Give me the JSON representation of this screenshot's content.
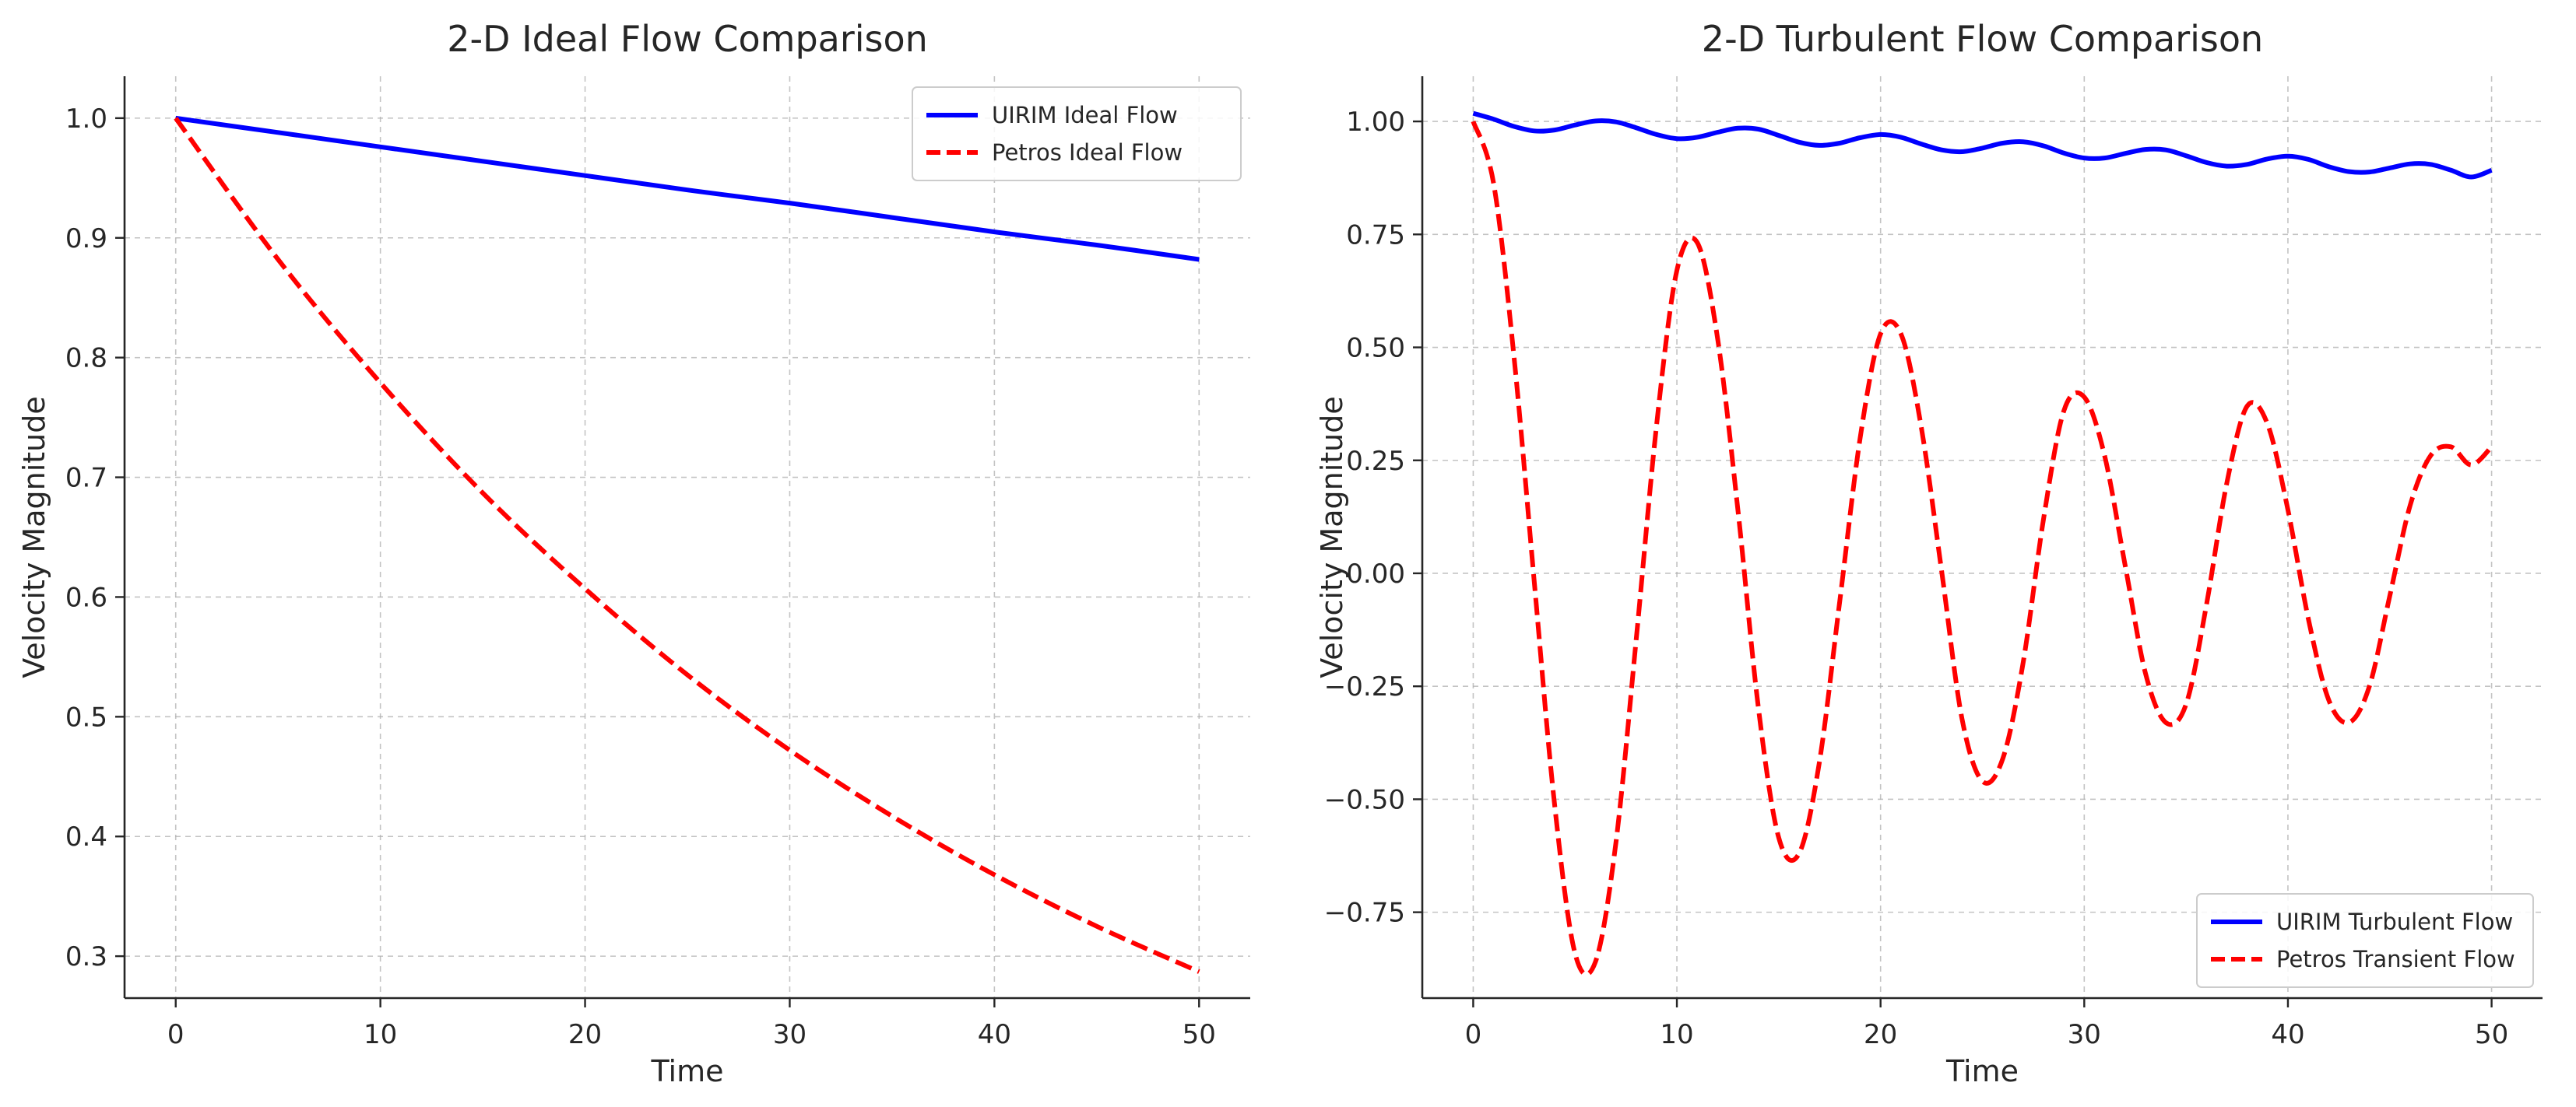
{
  "chart_data": [
    {
      "type": "line",
      "title": "2-D Ideal Flow Comparison",
      "xlabel": "Time",
      "ylabel": "Velocity Magnitude",
      "xlim": [
        -2.5,
        52.5
      ],
      "ylim": [
        0.265,
        1.035
      ],
      "xticks": [
        0,
        10,
        20,
        30,
        40,
        50
      ],
      "yticks": [
        0.3,
        0.4,
        0.5,
        0.6,
        0.7,
        0.8,
        0.9,
        1.0
      ],
      "xtick_labels": [
        "0",
        "10",
        "20",
        "30",
        "40",
        "50"
      ],
      "ytick_labels": [
        "0.3",
        "0.4",
        "0.5",
        "0.6",
        "0.7",
        "0.8",
        "0.9",
        "1.0"
      ],
      "grid": true,
      "legend_position": "top-right",
      "series": [
        {
          "name": "UIRIM Ideal Flow",
          "color": "#0000ff",
          "style": "solid",
          "x": [
            0,
            5,
            10,
            15,
            20,
            25,
            30,
            35,
            40,
            45,
            50
          ],
          "y": [
            1.0,
            0.988,
            0.976,
            0.964,
            0.952,
            0.94,
            0.929,
            0.917,
            0.905,
            0.894,
            0.882
          ]
        },
        {
          "name": "Petros Ideal Flow",
          "color": "#ff0000",
          "style": "dashed",
          "x": [
            0,
            5,
            10,
            15,
            20,
            25,
            30,
            35,
            40,
            45,
            50
          ],
          "y": [
            1.0,
            0.882,
            0.779,
            0.687,
            0.607,
            0.535,
            0.472,
            0.417,
            0.368,
            0.325,
            0.287
          ]
        }
      ]
    },
    {
      "type": "line",
      "title": "2-D Turbulent Flow Comparison",
      "xlabel": "Time",
      "ylabel": "Velocity Magnitude",
      "xlim": [
        -2.5,
        52.5
      ],
      "ylim": [
        -0.94,
        1.1
      ],
      "xticks": [
        0,
        10,
        20,
        30,
        40,
        50
      ],
      "yticks": [
        -0.75,
        -0.5,
        -0.25,
        0.0,
        0.25,
        0.5,
        0.75,
        1.0
      ],
      "xtick_labels": [
        "0",
        "10",
        "20",
        "30",
        "40",
        "50"
      ],
      "ytick_labels": [
        "−0.75",
        "−0.50",
        "−0.25",
        "0.00",
        "0.25",
        "0.50",
        "0.75",
        "1.00"
      ],
      "grid": true,
      "legend_position": "lower-right",
      "series": [
        {
          "name": "UIRIM Turbulent Flow",
          "color": "#0000ff",
          "style": "solid",
          "x": [
            0,
            1,
            2,
            3,
            4,
            5,
            6,
            7,
            8,
            9,
            10,
            11,
            12,
            13,
            14,
            15,
            16,
            17,
            18,
            19,
            20,
            21,
            22,
            23,
            24,
            25,
            26,
            27,
            28,
            29,
            30,
            31,
            32,
            33,
            34,
            35,
            36,
            37,
            38,
            39,
            40,
            41,
            42,
            43,
            44,
            45,
            46,
            47,
            48,
            49,
            50
          ],
          "y": [
            1.018,
            1.005,
            0.989,
            0.979,
            0.981,
            0.992,
            1.001,
            0.999,
            0.986,
            0.971,
            0.962,
            0.965,
            0.976,
            0.985,
            0.983,
            0.969,
            0.954,
            0.947,
            0.952,
            0.964,
            0.971,
            0.965,
            0.95,
            0.937,
            0.933,
            0.941,
            0.952,
            0.955,
            0.946,
            0.93,
            0.919,
            0.919,
            0.929,
            0.938,
            0.937,
            0.924,
            0.909,
            0.901,
            0.905,
            0.917,
            0.923,
            0.916,
            0.9,
            0.889,
            0.888,
            0.897,
            0.906,
            0.905,
            0.892,
            0.877,
            0.892
          ]
        },
        {
          "name": "Petros Transient Flow",
          "color": "#ff0000",
          "style": "dashed",
          "x": [
            0,
            1,
            2,
            3,
            4,
            5,
            6,
            7,
            8,
            9,
            10,
            11,
            12,
            13,
            14,
            15,
            16,
            17,
            18,
            19,
            20,
            21,
            22,
            23,
            24,
            25,
            26,
            27,
            28,
            29,
            30,
            31,
            32,
            33,
            34,
            35,
            36,
            37,
            38,
            39,
            40,
            41,
            42,
            43,
            44,
            45,
            46,
            47,
            48,
            49,
            50
          ],
          "y": [
            1.0,
            0.863,
            0.481,
            -0.02,
            -0.514,
            -0.841,
            -0.86,
            -0.598,
            -0.148,
            0.327,
            0.67,
            0.732,
            0.519,
            0.139,
            -0.297,
            -0.585,
            -0.62,
            -0.417,
            -0.06,
            0.3,
            0.53,
            0.53,
            0.323,
            0.004,
            -0.322,
            -0.46,
            -0.41,
            -0.198,
            0.12,
            0.36,
            0.39,
            0.26,
            0.02,
            -0.22,
            -0.33,
            -0.29,
            -0.07,
            0.2,
            0.37,
            0.33,
            0.14,
            -0.1,
            -0.28,
            -0.33,
            -0.25,
            -0.05,
            0.15,
            0.26,
            0.28,
            0.24,
            0.28
          ]
        }
      ]
    }
  ]
}
